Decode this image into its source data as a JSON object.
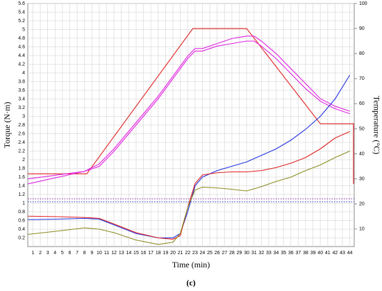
{
  "chart_data": {
    "type": "line",
    "xlabel": "Time (min)",
    "ylabel": "Torque (N·m)",
    "y2label": "Temperature (°C)",
    "caption": "(c)",
    "xlim": [
      0.3,
      44.6
    ],
    "ylim": [
      0,
      5.6
    ],
    "y2lim": [
      3,
      100
    ],
    "xticks": [
      1,
      2,
      3,
      4,
      5,
      6,
      7,
      8,
      9,
      10,
      11,
      12,
      13,
      14,
      15,
      16,
      17,
      18,
      19,
      20,
      21,
      22,
      23,
      24,
      25,
      26,
      27,
      28,
      29,
      30,
      31,
      32,
      33,
      34,
      35,
      36,
      37,
      38,
      39,
      40,
      41,
      42,
      43,
      44
    ],
    "yticks": [
      0.2,
      0.4,
      0.6,
      0.8,
      1,
      1.2,
      1.4,
      1.6,
      1.8,
      2,
      2.2,
      2.4,
      2.6,
      2.8,
      3,
      3.2,
      3.4,
      3.6,
      3.8,
      4,
      4.2,
      4.4,
      4.6,
      4.8,
      5,
      5.2,
      5.4,
      5.6
    ],
    "y2ticks": [
      10,
      20,
      30,
      40,
      50,
      60,
      70,
      80,
      90,
      100
    ],
    "grid": true,
    "series": [
      {
        "color": "#e02020",
        "axis": "y2",
        "x": [
          0.3,
          8.3,
          22.7,
          30,
          40,
          44.5,
          44.5
        ],
        "values": [
          32,
          32,
          90,
          90,
          52,
          52,
          28
        ]
      },
      {
        "color": "#e020e0",
        "axis": "y2",
        "x": [
          0.3,
          8,
          10,
          12,
          14,
          16,
          18,
          20,
          22,
          23,
          24,
          26,
          28,
          30,
          31,
          32,
          34,
          36,
          38,
          40,
          42,
          44
        ],
        "values": [
          30,
          33,
          36,
          42,
          49,
          56,
          63,
          71,
          79,
          82,
          82,
          84,
          86,
          87,
          87,
          85,
          80,
          74,
          68,
          62,
          59,
          57
        ]
      },
      {
        "color": "#e020e0",
        "axis": "y2",
        "x": [
          0.3,
          8,
          10,
          12,
          14,
          16,
          18,
          20,
          22,
          23,
          24,
          26,
          28,
          30,
          31,
          32,
          34,
          36,
          38,
          40,
          42,
          44
        ],
        "values": [
          28,
          33,
          35,
          41,
          48,
          55,
          62,
          70,
          78,
          81,
          81,
          83,
          84,
          85,
          85,
          83,
          78,
          72,
          66,
          61,
          58,
          56
        ]
      },
      {
        "color": "#8020a0",
        "style": "dotted",
        "x": [
          0.3,
          44.6
        ],
        "values": [
          1.1,
          1.1
        ]
      },
      {
        "color": "#2040d0",
        "style": "dotted",
        "x": [
          0.3,
          44.6
        ],
        "values": [
          1.03,
          1.03
        ]
      },
      {
        "color": "#2030e0",
        "x": [
          0.3,
          4,
          8,
          10,
          12,
          15,
          18,
          20,
          21,
          22,
          23,
          24,
          26,
          28,
          30,
          32,
          34,
          36,
          38,
          40,
          42,
          44
        ],
        "values": [
          0.62,
          0.63,
          0.65,
          0.63,
          0.5,
          0.3,
          0.2,
          0.2,
          0.3,
          0.8,
          1.4,
          1.6,
          1.75,
          1.85,
          1.95,
          2.1,
          2.25,
          2.45,
          2.7,
          3.0,
          3.4,
          3.95
        ]
      },
      {
        "color": "#e02020",
        "x": [
          0.3,
          4,
          8,
          10,
          12,
          15,
          18,
          20,
          21,
          22,
          23,
          24,
          26,
          28,
          30,
          32,
          34,
          36,
          38,
          40,
          42,
          44
        ],
        "values": [
          0.7,
          0.69,
          0.67,
          0.65,
          0.52,
          0.32,
          0.2,
          0.17,
          0.25,
          0.9,
          1.45,
          1.65,
          1.7,
          1.72,
          1.72,
          1.75,
          1.82,
          1.92,
          2.05,
          2.25,
          2.5,
          2.65
        ]
      },
      {
        "color": "#8a8a20",
        "x": [
          0.3,
          4,
          8,
          10,
          12,
          15,
          18,
          20,
          21,
          22,
          23,
          24,
          26,
          28,
          30,
          32,
          34,
          36,
          38,
          40,
          42,
          44
        ],
        "values": [
          0.28,
          0.35,
          0.43,
          0.4,
          0.32,
          0.15,
          0.05,
          0.1,
          0.3,
          0.9,
          1.3,
          1.37,
          1.35,
          1.32,
          1.28,
          1.38,
          1.5,
          1.6,
          1.75,
          1.88,
          2.05,
          2.2
        ]
      }
    ]
  }
}
